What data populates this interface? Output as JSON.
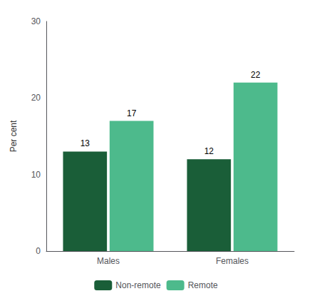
{
  "chart_data": {
    "type": "bar",
    "ylabel": "Per cent",
    "categories": [
      "Males",
      "Females"
    ],
    "series": [
      {
        "name": "Non-remote",
        "color": "#1a5e38",
        "values": [
          13,
          12
        ]
      },
      {
        "name": "Remote",
        "color": "#4dba8c",
        "values": [
          17,
          22
        ]
      }
    ],
    "ylim": [
      0,
      30
    ],
    "yticks": [
      0,
      10,
      20,
      30
    ],
    "grid": false,
    "legend": "bottom",
    "data_labels": true
  }
}
